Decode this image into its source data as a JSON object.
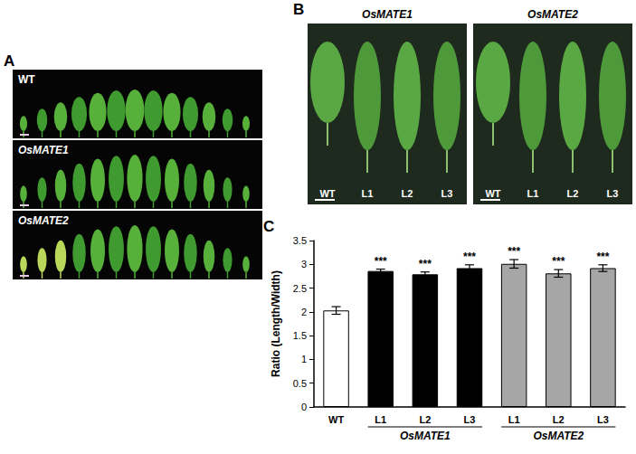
{
  "chart_data": {
    "type": "bar",
    "panel_label": "C",
    "y_label": "Ratio (Length/Width)",
    "categories": [
      "WT",
      "L1",
      "L2",
      "L3",
      "L1",
      "L2",
      "L3"
    ],
    "values": [
      2.03,
      2.86,
      2.79,
      2.92,
      3.01,
      2.81,
      2.92
    ],
    "errors": [
      0.08,
      0.04,
      0.05,
      0.07,
      0.09,
      0.08,
      0.07
    ],
    "significance": [
      null,
      "***",
      "***",
      "***",
      "***",
      "***",
      "***"
    ],
    "colors": [
      "#ffffff",
      "#000000",
      "#000000",
      "#000000",
      "#a6a6a6",
      "#a6a6a6",
      "#a6a6a6"
    ],
    "groups": [
      {
        "name": "OsMATE1",
        "start": 1,
        "end": 3
      },
      {
        "name": "OsMATE2",
        "start": 4,
        "end": 6
      }
    ],
    "ylim": [
      0,
      3.5
    ],
    "yticks": [
      0,
      0.5,
      1,
      1.5,
      2,
      2.5,
      3,
      3.5
    ],
    "grid": false
  },
  "panels": [
    {
      "label": "A",
      "rows": [
        "WT",
        "OsMATE1",
        "OsMATE2"
      ]
    },
    {
      "label": "B",
      "photos": [
        {
          "title": "OsMATE1",
          "leaves": [
            "WT",
            "L1",
            "L2",
            "L3"
          ]
        },
        {
          "title": "OsMATE2",
          "leaves": [
            "WT",
            "L1",
            "L2",
            "L3"
          ]
        }
      ]
    }
  ]
}
